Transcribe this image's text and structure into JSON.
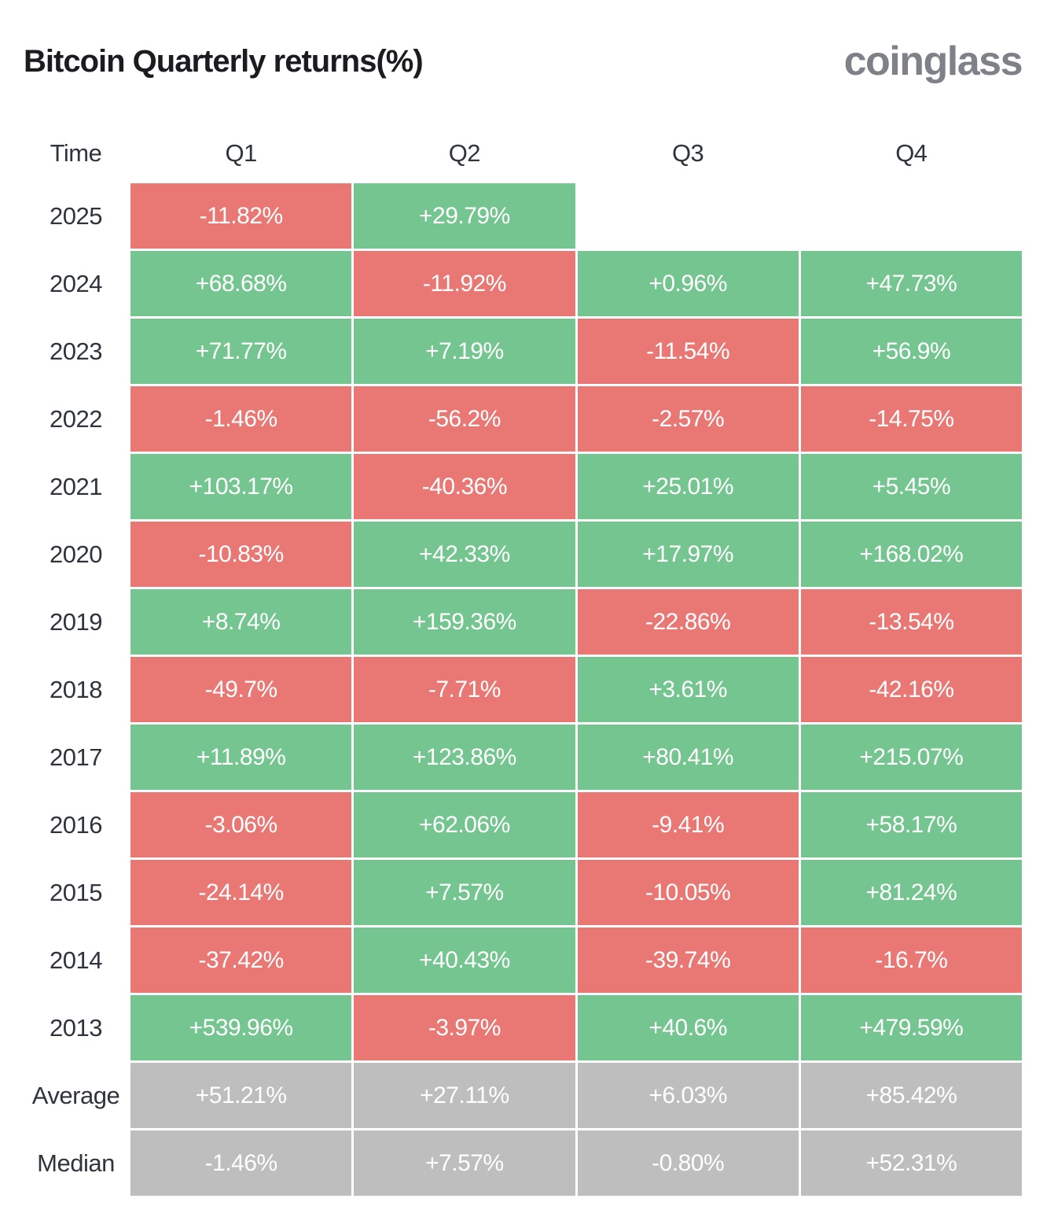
{
  "header": {
    "title": "Bitcoin Quarterly returns(%)",
    "logo": "coinglass"
  },
  "colors": {
    "positive": "#74C58F",
    "negative": "#E97875",
    "neutral": "#BEBEBE",
    "title": "#1B1C1F",
    "label": "#2F353C",
    "logo": "#7E8288",
    "cell_text": "#FFFFFF"
  },
  "table": {
    "columns": [
      "Time",
      "Q1",
      "Q2",
      "Q3",
      "Q4"
    ],
    "rows": [
      {
        "label": "2025",
        "variant": "year",
        "cells": [
          "-11.82%",
          "+29.79%",
          "",
          ""
        ]
      },
      {
        "label": "2024",
        "variant": "year",
        "cells": [
          "+68.68%",
          "-11.92%",
          "+0.96%",
          "+47.73%"
        ]
      },
      {
        "label": "2023",
        "variant": "year",
        "cells": [
          "+71.77%",
          "+7.19%",
          "-11.54%",
          "+56.9%"
        ]
      },
      {
        "label": "2022",
        "variant": "year",
        "cells": [
          "-1.46%",
          "-56.2%",
          "-2.57%",
          "-14.75%"
        ]
      },
      {
        "label": "2021",
        "variant": "year",
        "cells": [
          "+103.17%",
          "-40.36%",
          "+25.01%",
          "+5.45%"
        ]
      },
      {
        "label": "2020",
        "variant": "year",
        "cells": [
          "-10.83%",
          "+42.33%",
          "+17.97%",
          "+168.02%"
        ]
      },
      {
        "label": "2019",
        "variant": "year",
        "cells": [
          "+8.74%",
          "+159.36%",
          "-22.86%",
          "-13.54%"
        ]
      },
      {
        "label": "2018",
        "variant": "year",
        "cells": [
          "-49.7%",
          "-7.71%",
          "+3.61%",
          "-42.16%"
        ]
      },
      {
        "label": "2017",
        "variant": "year",
        "cells": [
          "+11.89%",
          "+123.86%",
          "+80.41%",
          "+215.07%"
        ]
      },
      {
        "label": "2016",
        "variant": "year",
        "cells": [
          "-3.06%",
          "+62.06%",
          "-9.41%",
          "+58.17%"
        ]
      },
      {
        "label": "2015",
        "variant": "year",
        "cells": [
          "-24.14%",
          "+7.57%",
          "-10.05%",
          "+81.24%"
        ]
      },
      {
        "label": "2014",
        "variant": "year",
        "cells": [
          "-37.42%",
          "+40.43%",
          "-39.74%",
          "-16.7%"
        ]
      },
      {
        "label": "2013",
        "variant": "year",
        "cells": [
          "+539.96%",
          "-3.97%",
          "+40.6%",
          "+479.59%"
        ]
      },
      {
        "label": "Average",
        "variant": "summary",
        "cells": [
          "+51.21%",
          "+27.11%",
          "+6.03%",
          "+85.42%"
        ]
      },
      {
        "label": "Median",
        "variant": "summary",
        "cells": [
          "-1.46%",
          "+7.57%",
          "-0.80%",
          "+52.31%"
        ]
      }
    ]
  },
  "chart_data": {
    "type": "heatmap",
    "title": "Bitcoin Quarterly returns(%)",
    "columns": [
      "Q1",
      "Q2",
      "Q3",
      "Q4"
    ],
    "rows": [
      "2025",
      "2024",
      "2023",
      "2022",
      "2021",
      "2020",
      "2019",
      "2018",
      "2017",
      "2016",
      "2015",
      "2014",
      "2013",
      "Average",
      "Median"
    ],
    "values": [
      [
        -11.82,
        29.79,
        null,
        null
      ],
      [
        68.68,
        -11.92,
        0.96,
        47.73
      ],
      [
        71.77,
        7.19,
        -11.54,
        56.9
      ],
      [
        -1.46,
        -56.2,
        -2.57,
        -14.75
      ],
      [
        103.17,
        -40.36,
        25.01,
        5.45
      ],
      [
        -10.83,
        42.33,
        17.97,
        168.02
      ],
      [
        8.74,
        159.36,
        -22.86,
        -13.54
      ],
      [
        -49.7,
        -7.71,
        3.61,
        -42.16
      ],
      [
        11.89,
        123.86,
        80.41,
        215.07
      ],
      [
        -3.06,
        62.06,
        -9.41,
        58.17
      ],
      [
        -24.14,
        7.57,
        -10.05,
        81.24
      ],
      [
        -37.42,
        40.43,
        -39.74,
        -16.7
      ],
      [
        539.96,
        -3.97,
        40.6,
        479.59
      ],
      [
        51.21,
        27.11,
        6.03,
        85.42
      ],
      [
        -1.46,
        7.57,
        -0.8,
        52.31
      ]
    ],
    "legend": "green = positive quarterly return, red = negative quarterly return, gray = summary rows",
    "units": "percent"
  }
}
